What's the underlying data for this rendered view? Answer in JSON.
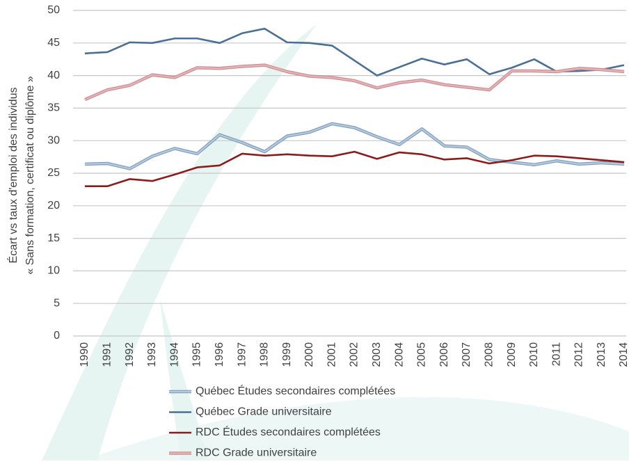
{
  "chart_data": {
    "type": "line",
    "ylabel": [
      "Écart vs taux d'emploi des individus",
      "« Sans formation, certificat ou diplôme »"
    ],
    "categories": [
      "1990",
      "1991",
      "1992",
      "1993",
      "1994",
      "1995",
      "1996",
      "1997",
      "1998",
      "1999",
      "2000",
      "2001",
      "2002",
      "2003",
      "2004",
      "2005",
      "2006",
      "2007",
      "2008",
      "2009",
      "2010",
      "2011",
      "2012",
      "2013",
      "2014"
    ],
    "series": [
      {
        "name": "Québec Études secondaires complétées",
        "color": "#b4cbe0",
        "outline": "#7f9bb8",
        "values": [
          26.4,
          26.5,
          25.7,
          27.6,
          28.8,
          28.0,
          30.9,
          29.7,
          28.3,
          30.7,
          31.3,
          32.6,
          32.0,
          30.6,
          29.4,
          31.8,
          29.2,
          29.0,
          27.1,
          26.7,
          26.3,
          26.9,
          26.4,
          26.6,
          26.4
        ]
      },
      {
        "name": "Québec Grade universitaire",
        "color": "#4a6f95",
        "values": [
          43.4,
          43.6,
          45.1,
          45.0,
          45.7,
          45.7,
          45.0,
          46.5,
          47.2,
          45.1,
          45.0,
          44.6,
          42.3,
          40.0,
          41.3,
          42.6,
          41.7,
          42.5,
          40.2,
          41.2,
          42.5,
          40.6,
          40.7,
          40.9,
          41.6
        ]
      },
      {
        "name": "RDC Études secondaires complétées",
        "color": "#8b1c1c",
        "values": [
          23.0,
          23.0,
          24.1,
          23.8,
          24.8,
          25.9,
          26.2,
          28.0,
          27.7,
          27.9,
          27.7,
          27.6,
          28.3,
          27.2,
          28.2,
          27.9,
          27.1,
          27.3,
          26.5,
          27.0,
          27.7,
          27.6,
          27.3,
          27.0,
          26.7
        ]
      },
      {
        "name": "RDC Grade universitaire",
        "color": "#e6b4b6",
        "outline": "#c98c90",
        "values": [
          36.3,
          37.8,
          38.5,
          40.1,
          39.7,
          41.2,
          41.1,
          41.4,
          41.6,
          40.6,
          39.9,
          39.7,
          39.2,
          38.1,
          38.9,
          39.3,
          38.6,
          38.2,
          37.8,
          40.7,
          40.7,
          40.6,
          41.1,
          40.9,
          40.6
        ]
      }
    ],
    "ylim": [
      0,
      50
    ],
    "yticks": [
      0,
      5,
      10,
      15,
      20,
      25,
      30,
      35,
      40,
      45,
      50
    ],
    "grid": true,
    "legend": "bottom"
  }
}
